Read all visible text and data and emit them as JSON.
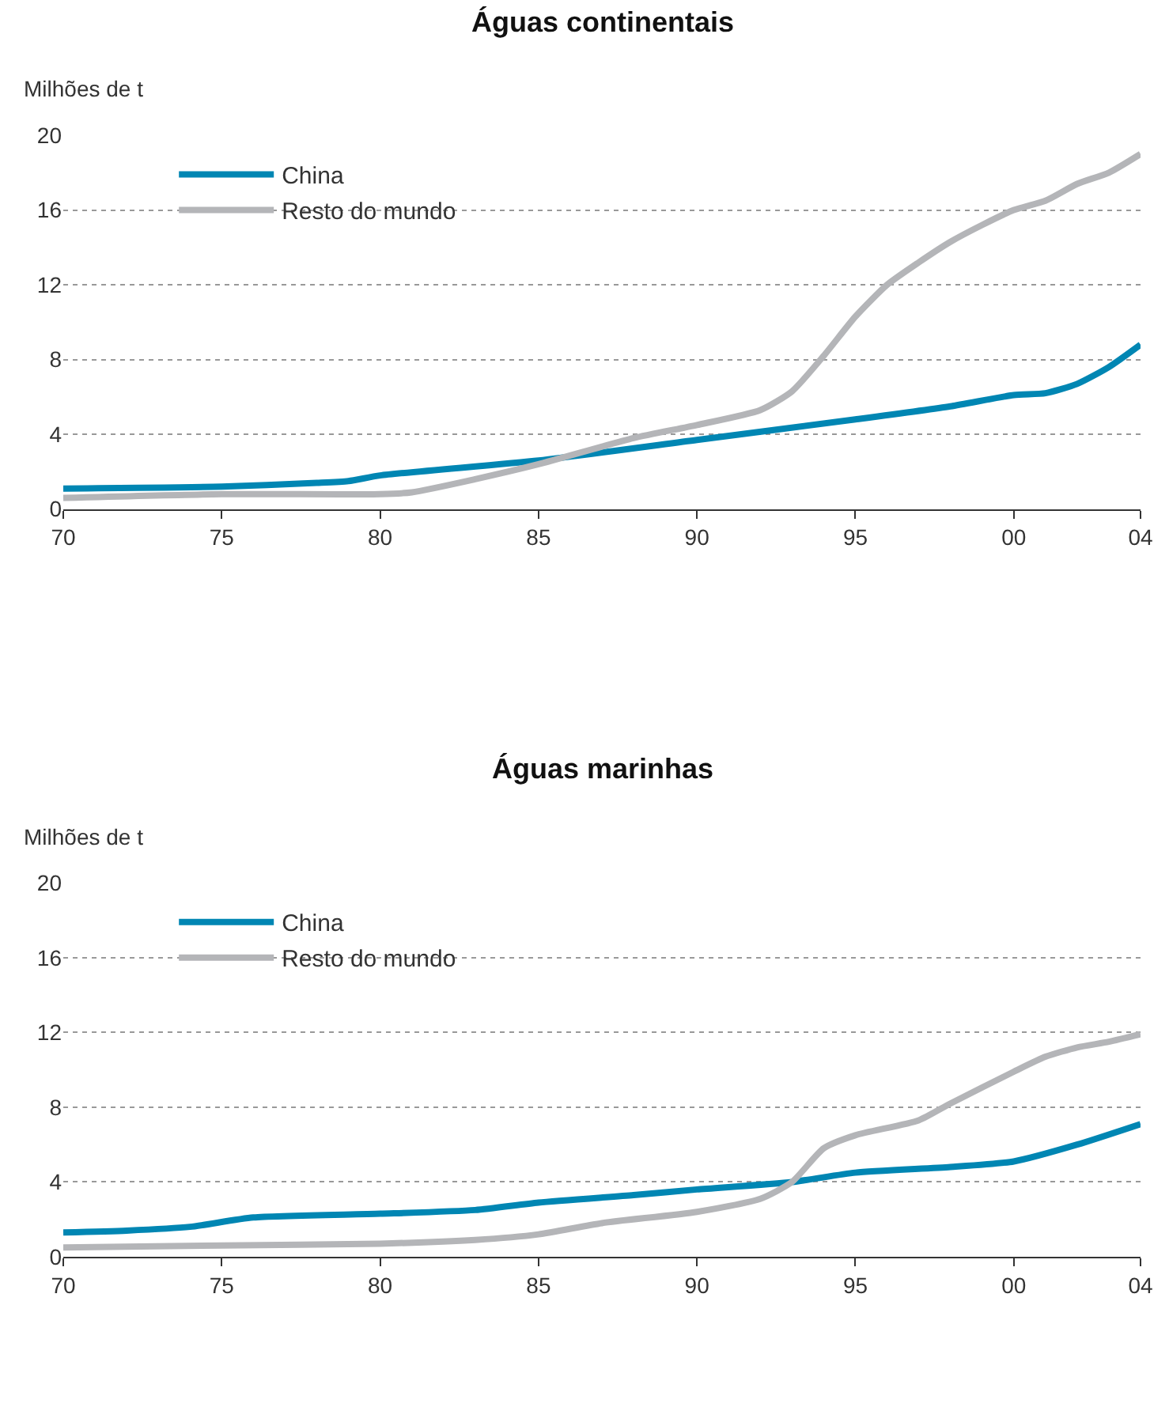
{
  "chart_data": [
    {
      "type": "line",
      "title": "Águas continentais",
      "ylabel": "Milhões de t",
      "xlim": [
        1970,
        2004
      ],
      "xticks": [
        {
          "value": 1970,
          "label": "70"
        },
        {
          "value": 1975,
          "label": "75"
        },
        {
          "value": 1980,
          "label": "80"
        },
        {
          "value": 1985,
          "label": "85"
        },
        {
          "value": 1990,
          "label": "90"
        },
        {
          "value": 1995,
          "label": "95"
        },
        {
          "value": 2000,
          "label": "00"
        },
        {
          "value": 2004,
          "label": "04"
        }
      ],
      "ylim": [
        0,
        20
      ],
      "yticks": [
        0,
        4,
        8,
        12,
        16,
        20
      ],
      "grid": "y",
      "legend": "top left",
      "line_style": "solid",
      "marker": "none",
      "series": [
        {
          "name": "China",
          "color": "#0086b3",
          "x": [
            1970,
            1975,
            1978,
            1979,
            1980,
            1985,
            1990,
            1995,
            1998,
            2000,
            2001,
            2002,
            2003,
            2004
          ],
          "values": [
            1.1,
            1.2,
            1.4,
            1.5,
            1.8,
            2.6,
            3.7,
            4.8,
            5.5,
            6.1,
            6.2,
            6.7,
            7.6,
            8.8
          ]
        },
        {
          "name": "Resto do mundo",
          "color": "#b4b5b8",
          "x": [
            1970,
            1975,
            1980,
            1981,
            1983,
            1985,
            1988,
            1990,
            1992,
            1993,
            1994,
            1995,
            1996,
            1997,
            1998,
            1999,
            2000,
            2001,
            2002,
            2003,
            2004
          ],
          "values": [
            0.6,
            0.8,
            0.8,
            0.9,
            1.6,
            2.4,
            3.8,
            4.5,
            5.3,
            6.3,
            8.2,
            10.3,
            12,
            13.2,
            14.3,
            15.2,
            16,
            16.5,
            17.4,
            18,
            19
          ]
        }
      ]
    },
    {
      "type": "line",
      "title": "Águas marinhas",
      "ylabel": "Milhões de t",
      "xlim": [
        1970,
        2004
      ],
      "xticks": [
        {
          "value": 1970,
          "label": "70"
        },
        {
          "value": 1975,
          "label": "75"
        },
        {
          "value": 1980,
          "label": "80"
        },
        {
          "value": 1985,
          "label": "85"
        },
        {
          "value": 1990,
          "label": "90"
        },
        {
          "value": 1995,
          "label": "95"
        },
        {
          "value": 2000,
          "label": "00"
        },
        {
          "value": 2004,
          "label": "04"
        }
      ],
      "ylim": [
        0,
        20
      ],
      "yticks": [
        0,
        4,
        8,
        12,
        16,
        20
      ],
      "grid": "y",
      "legend": "top left",
      "line_style": "solid",
      "marker": "none",
      "series": [
        {
          "name": "China",
          "color": "#0086b3",
          "x": [
            1970,
            1972,
            1974,
            1976,
            1980,
            1983,
            1985,
            1988,
            1990,
            1993,
            1995,
            1998,
            2000,
            2002,
            2004
          ],
          "values": [
            1.3,
            1.4,
            1.6,
            2.1,
            2.3,
            2.5,
            2.9,
            3.3,
            3.6,
            4.0,
            4.5,
            4.8,
            5.1,
            6.0,
            7.1
          ]
        },
        {
          "name": "Resto do mundo",
          "color": "#b4b5b8",
          "x": [
            1970,
            1975,
            1980,
            1983,
            1985,
            1987,
            1990,
            1992,
            1993,
            1994,
            1995,
            1997,
            1998,
            2000,
            2001,
            2002,
            2003,
            2004
          ],
          "values": [
            0.5,
            0.6,
            0.7,
            0.9,
            1.2,
            1.8,
            2.4,
            3.1,
            4.0,
            5.8,
            6.5,
            7.3,
            8.2,
            9.9,
            10.7,
            11.2,
            11.5,
            11.9
          ]
        }
      ]
    }
  ]
}
